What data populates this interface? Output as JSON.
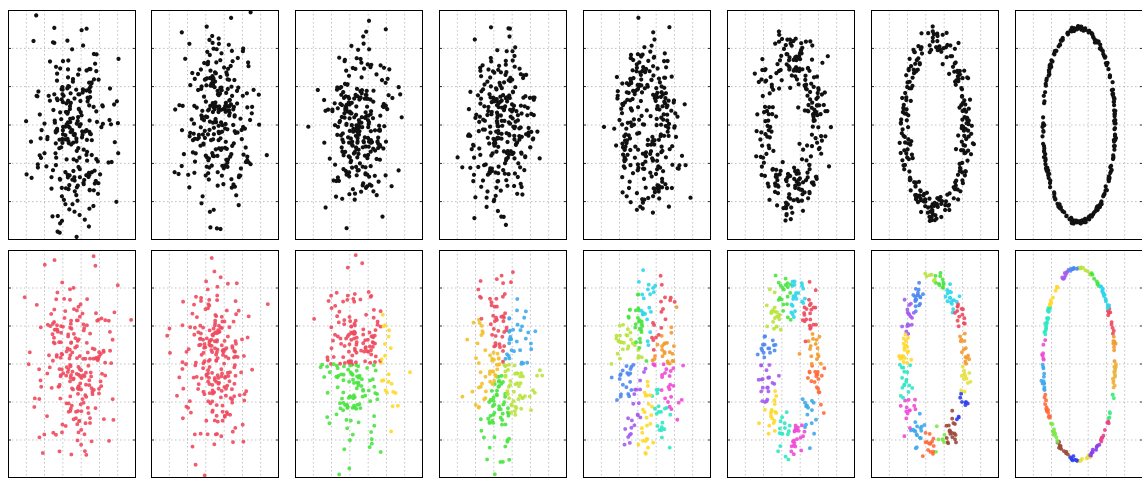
{
  "figure": {
    "rows": 2,
    "columns": 8,
    "top_row_color": "#111111",
    "grid": true,
    "grid_color": "#b4b4b4",
    "frame_color": "#000000"
  },
  "chart_data": [
    {
      "type": "scatter",
      "panel": 1,
      "row": 1,
      "stage": 1,
      "color": "#111111",
      "shape": "blob",
      "grid": true,
      "xlim": [
        -1.6,
        1.6
      ],
      "ylim": [
        -1.6,
        1.6
      ],
      "title": "",
      "xlabel": "",
      "ylabel": ""
    },
    {
      "type": "scatter",
      "panel": 2,
      "row": 1,
      "stage": 2,
      "color": "#111111",
      "shape": "blob",
      "grid": true,
      "xlim": [
        -1.6,
        1.6
      ],
      "ylim": [
        -1.6,
        1.6
      ],
      "title": "",
      "xlabel": "",
      "ylabel": ""
    },
    {
      "type": "scatter",
      "panel": 3,
      "row": 1,
      "stage": 3,
      "color": "#111111",
      "shape": "ring-forming",
      "grid": true,
      "xlim": [
        -1.6,
        1.6
      ],
      "ylim": [
        -1.6,
        1.6
      ],
      "title": "",
      "xlabel": "",
      "ylabel": ""
    },
    {
      "type": "scatter",
      "panel": 4,
      "row": 1,
      "stage": 4,
      "color": "#111111",
      "shape": "ring-forming",
      "grid": true,
      "xlim": [
        -1.6,
        1.6
      ],
      "ylim": [
        -1.6,
        1.6
      ],
      "title": "",
      "xlabel": "",
      "ylabel": ""
    },
    {
      "type": "scatter",
      "panel": 5,
      "row": 1,
      "stage": 5,
      "color": "#111111",
      "shape": "ring",
      "grid": true,
      "xlim": [
        -1.6,
        1.6
      ],
      "ylim": [
        -1.6,
        1.6
      ],
      "title": "",
      "xlabel": "",
      "ylabel": ""
    },
    {
      "type": "scatter",
      "panel": 6,
      "row": 1,
      "stage": 6,
      "color": "#111111",
      "shape": "ring",
      "grid": true,
      "xlim": [
        -1.6,
        1.6
      ],
      "ylim": [
        -1.6,
        1.6
      ],
      "title": "",
      "xlabel": "",
      "ylabel": ""
    },
    {
      "type": "scatter",
      "panel": 7,
      "row": 1,
      "stage": 7,
      "color": "#111111",
      "shape": "ring",
      "grid": true,
      "xlim": [
        -1.6,
        1.6
      ],
      "ylim": [
        -1.6,
        1.6
      ],
      "title": "",
      "xlabel": "",
      "ylabel": ""
    },
    {
      "type": "scatter",
      "panel": 8,
      "row": 1,
      "stage": 8,
      "color": "#111111",
      "shape": "thin-ring",
      "grid": true,
      "xlim": [
        -1.6,
        1.6
      ],
      "ylim": [
        -1.6,
        1.6
      ],
      "title": "",
      "xlabel": "",
      "ylabel": ""
    },
    {
      "type": "scatter",
      "panel": 1,
      "row": 2,
      "stage": 1,
      "clusters": 1,
      "colors": [
        "#ee4a5e"
      ],
      "grid": true,
      "xlim": [
        -1.6,
        1.6
      ],
      "ylim": [
        -1.6,
        1.6
      ],
      "title": "",
      "xlabel": "",
      "ylabel": ""
    },
    {
      "type": "scatter",
      "panel": 2,
      "row": 2,
      "stage": 2,
      "clusters": 1,
      "colors": [
        "#ee4a5e"
      ],
      "grid": true,
      "xlim": [
        -1.6,
        1.6
      ],
      "ylim": [
        -1.6,
        1.6
      ],
      "title": "",
      "xlabel": "",
      "ylabel": ""
    },
    {
      "type": "scatter",
      "panel": 3,
      "row": 2,
      "stage": 3,
      "clusters": 3,
      "colors": [
        "#ee4a5e",
        "#49e43f",
        "#ffd92c"
      ],
      "grid": true,
      "xlim": [
        -1.6,
        1.6
      ],
      "ylim": [
        -1.6,
        1.6
      ],
      "title": "",
      "xlabel": "",
      "ylabel": ""
    },
    {
      "type": "scatter",
      "panel": 4,
      "row": 2,
      "stage": 4,
      "clusters": 5,
      "colors": [
        "#3fa8ec",
        "#ee4a5e",
        "#f3c12f",
        "#49e43f",
        "#b9e33d"
      ],
      "grid": true,
      "xlim": [
        -1.6,
        1.6
      ],
      "ylim": [
        -1.6,
        1.6
      ],
      "title": "",
      "xlabel": "",
      "ylabel": ""
    },
    {
      "type": "scatter",
      "panel": 5,
      "row": 2,
      "stage": 5,
      "clusters": 10,
      "colors": [
        "#f39b2e",
        "#ee4a5e",
        "#2fd6ec",
        "#49e43f",
        "#b9e33d",
        "#4e88ef",
        "#a45cef",
        "#ffd92c",
        "#2fe8c4",
        "#f04ad6"
      ],
      "grid": true,
      "xlim": [
        -1.6,
        1.6
      ],
      "ylim": [
        -1.6,
        1.6
      ],
      "title": "",
      "xlabel": "",
      "ylabel": ""
    },
    {
      "type": "scatter",
      "panel": 6,
      "row": 2,
      "stage": 6,
      "clusters": 12,
      "colors": [
        "#f39b2e",
        "#ee4a5e",
        "#2fd6ec",
        "#49e43f",
        "#b9e33d",
        "#4e88ef",
        "#a45cef",
        "#ffd92c",
        "#2fe8c4",
        "#f04ad6",
        "#3fa8ec",
        "#ff6b3b"
      ],
      "grid": true,
      "xlim": [
        -1.6,
        1.6
      ],
      "ylim": [
        -1.6,
        1.6
      ],
      "title": "",
      "xlabel": "",
      "ylabel": ""
    },
    {
      "type": "scatter",
      "panel": 7,
      "row": 2,
      "stage": 7,
      "clusters": 16,
      "colors": [
        "#f39b2e",
        "#ee4a5e",
        "#2fd6ec",
        "#49e43f",
        "#b9e33d",
        "#4e88ef",
        "#a45cef",
        "#ffd92c",
        "#2fe8c4",
        "#f04ad6",
        "#3fa8ec",
        "#ff6b3b",
        "#7de84a",
        "#9b4a3b",
        "#2f3fec",
        "#e8e03f"
      ],
      "grid": true,
      "xlim": [
        -1.6,
        1.6
      ],
      "ylim": [
        -1.6,
        1.6
      ],
      "title": "",
      "xlabel": "",
      "ylabel": ""
    },
    {
      "type": "scatter",
      "panel": 8,
      "row": 2,
      "stage": 8,
      "clusters": 20,
      "colors": [
        "#f39b2e",
        "#ee4a5e",
        "#2fd6ec",
        "#49e43f",
        "#b9e33d",
        "#4e88ef",
        "#a45cef",
        "#ffd92c",
        "#2fe8c4",
        "#f04ad6",
        "#3fa8ec",
        "#ff6b3b",
        "#7de84a",
        "#9b4a3b",
        "#2f3fec",
        "#e8e03f",
        "#8a3fec",
        "#ec3f8a",
        "#3fec7d",
        "#ecb43f"
      ],
      "grid": true,
      "xlim": [
        -1.6,
        1.6
      ],
      "ylim": [
        -1.6,
        1.6
      ],
      "title": "",
      "xlabel": "",
      "ylabel": ""
    }
  ]
}
